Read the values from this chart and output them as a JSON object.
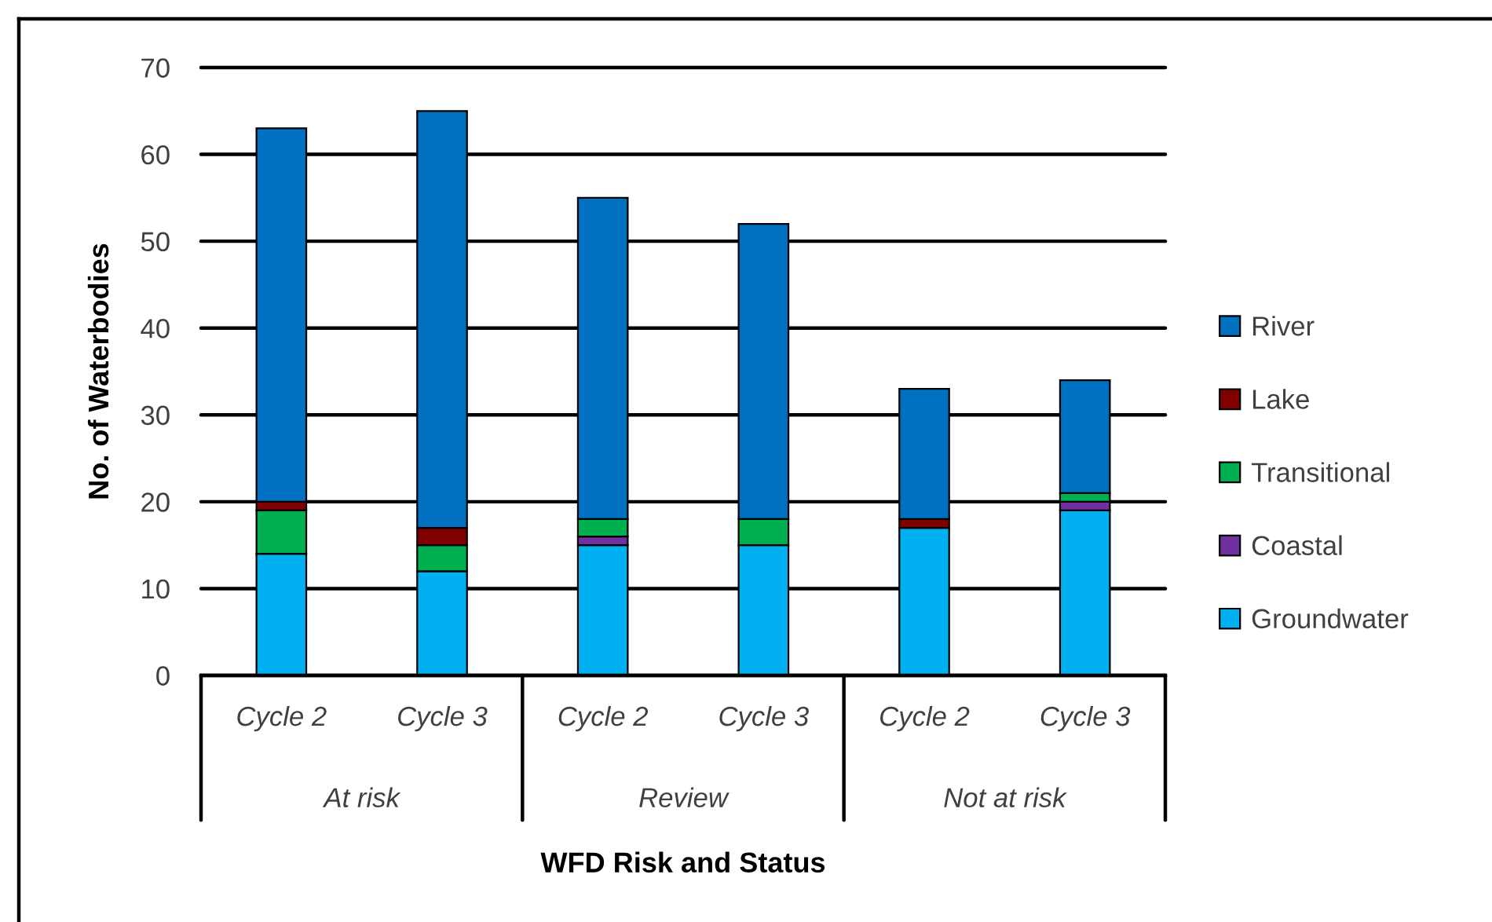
{
  "chart_data": {
    "type": "bar",
    "stacked": true,
    "xlabel": "WFD Risk and Status",
    "ylabel": "No. of Waterbodies",
    "categories": [
      "Cycle 2",
      "Cycle 3",
      "Cycle 2",
      "Cycle 3",
      "Cycle 2",
      "Cycle 3"
    ],
    "annotations": [
      "At risk",
      "Review",
      "Not at risk"
    ],
    "series": [
      {
        "name": "Groundwater",
        "color": "#00b0f0",
        "values": [
          14,
          12,
          15,
          15,
          17,
          19
        ]
      },
      {
        "name": "Coastal",
        "color": "#7030a0",
        "values": [
          0,
          0,
          1,
          0,
          0,
          1
        ]
      },
      {
        "name": "Transitional",
        "color": "#00b050",
        "values": [
          5,
          3,
          2,
          3,
          0,
          1
        ]
      },
      {
        "name": "Lake",
        "color": "#800000",
        "values": [
          1,
          2,
          0,
          0,
          1,
          0
        ]
      },
      {
        "name": "River",
        "color": "#0070c0",
        "values": [
          43,
          48,
          37,
          34,
          15,
          13
        ]
      }
    ],
    "ylim": [
      0,
      70
    ],
    "yticks": [
      0,
      10,
      20,
      30,
      40,
      50,
      60,
      70
    ],
    "grid": "y",
    "legend": "right"
  }
}
